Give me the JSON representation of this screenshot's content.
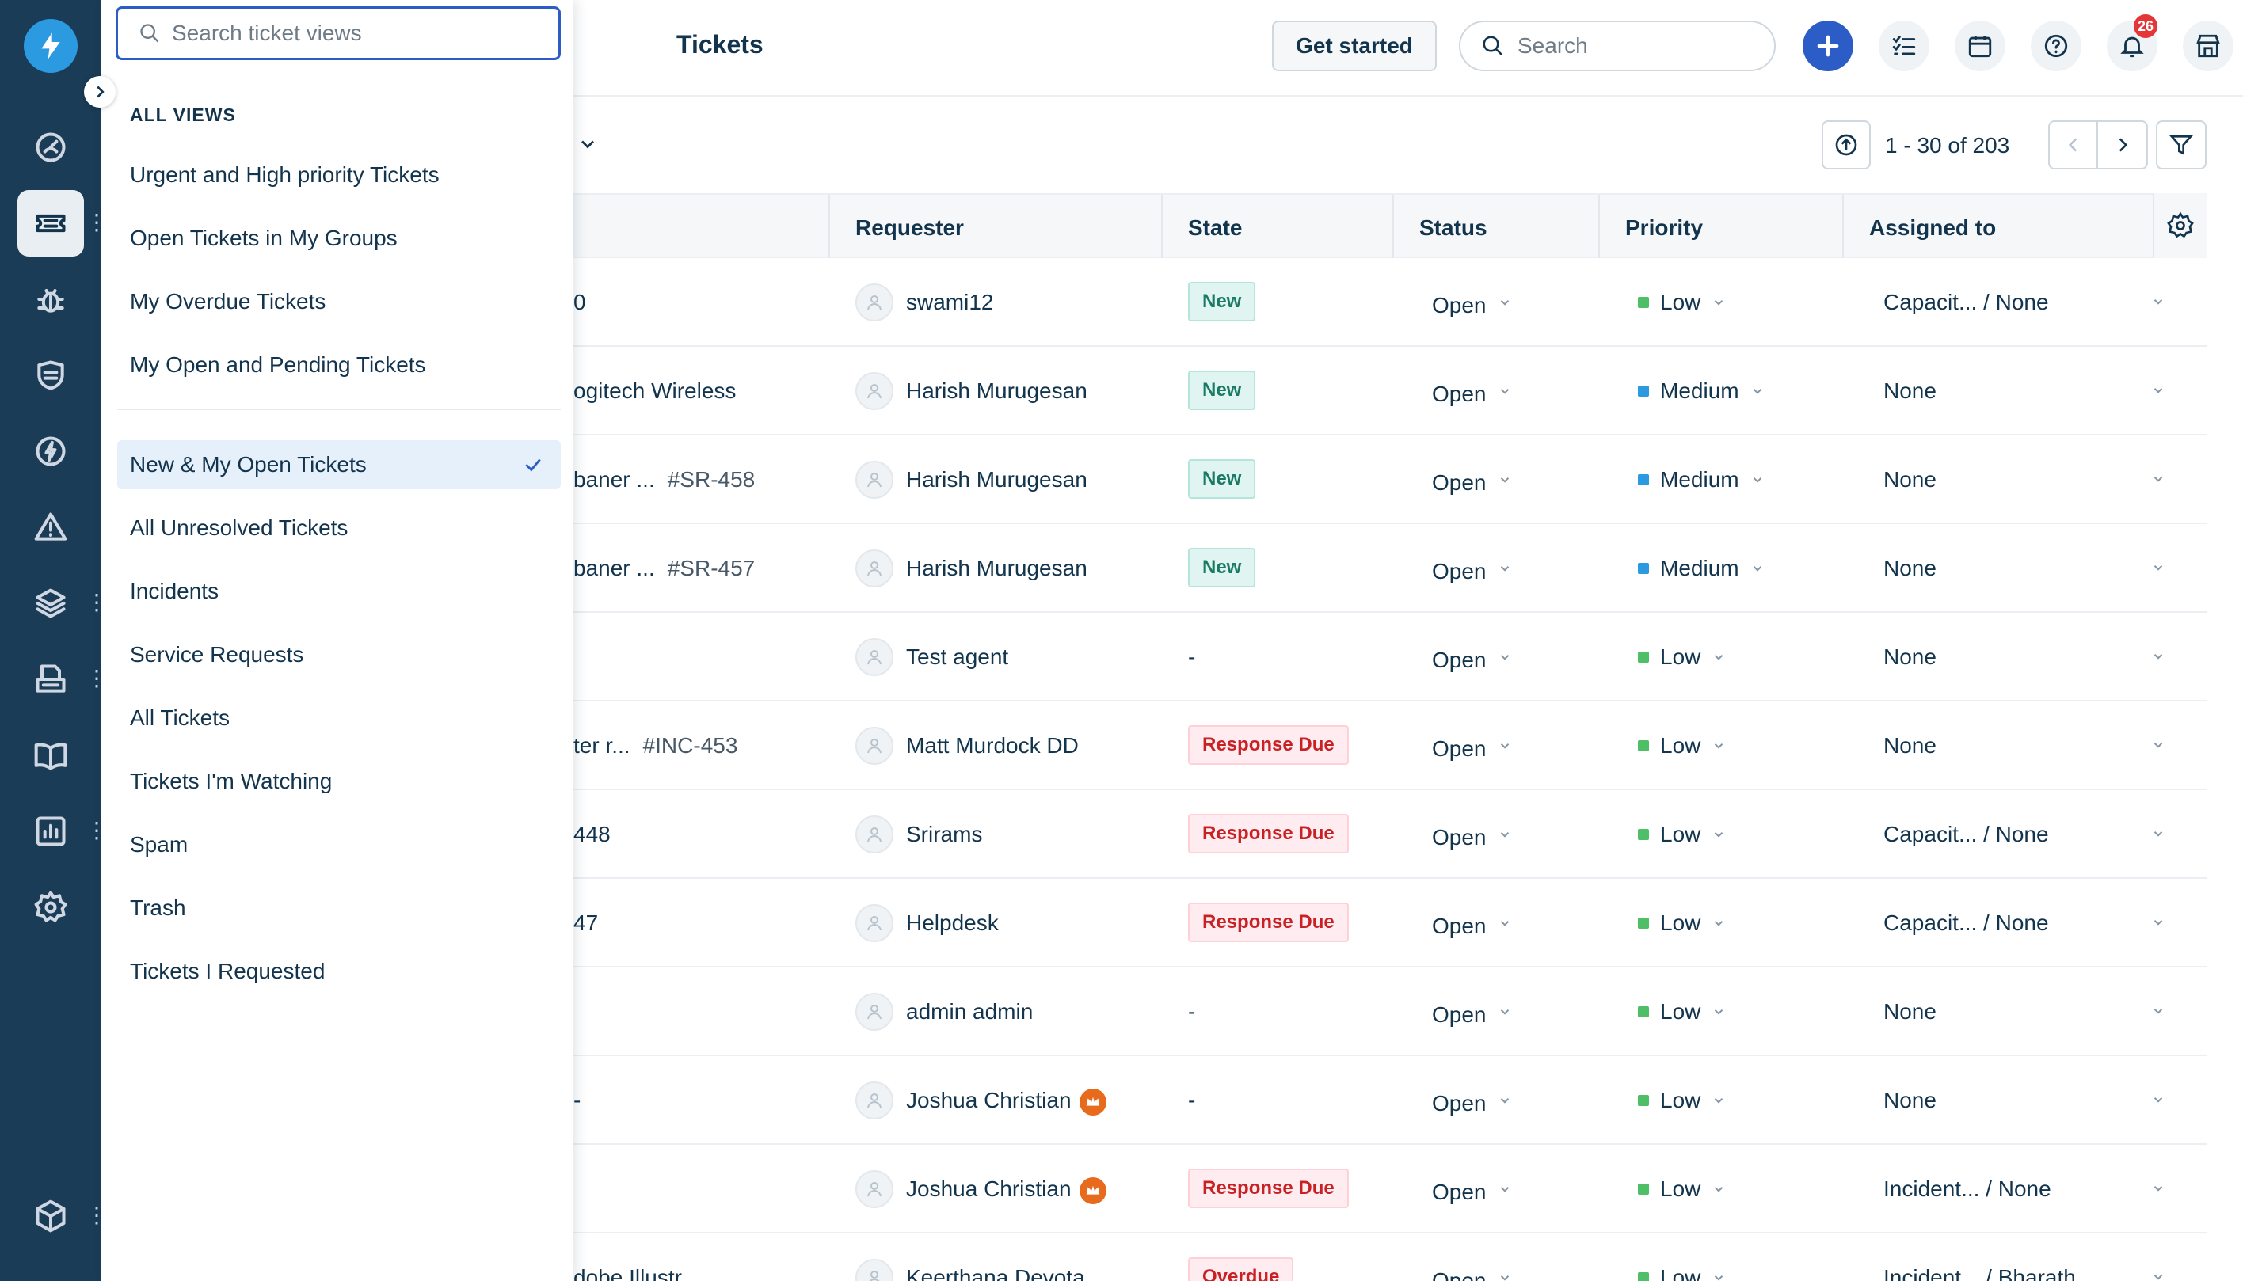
{
  "app": {
    "page_title": "Tickets"
  },
  "rail": {
    "logo_icon": "lightning-icon",
    "items": [
      {
        "name": "dashboard",
        "icon": "gauge-icon"
      },
      {
        "name": "tickets",
        "icon": "ticket-icon",
        "active": true
      },
      {
        "name": "problems",
        "icon": "bug-icon"
      },
      {
        "name": "changes",
        "icon": "shield-icon"
      },
      {
        "name": "releases",
        "icon": "bolt-icon"
      },
      {
        "name": "alerts",
        "icon": "warning-icon"
      },
      {
        "name": "assets",
        "icon": "layers-icon"
      },
      {
        "name": "projects",
        "icon": "printer-icon"
      },
      {
        "name": "solutions",
        "icon": "book-icon"
      },
      {
        "name": "analytics",
        "icon": "chart-icon"
      },
      {
        "name": "admin",
        "icon": "gear-icon"
      },
      {
        "name": "apps",
        "icon": "box-icon"
      }
    ]
  },
  "views_panel": {
    "search_placeholder": "Search ticket views",
    "header": "ALL VIEWS",
    "items": [
      "Urgent and High priority Tickets",
      "Open Tickets in My Groups",
      "My Overdue Tickets",
      "My Open and Pending Tickets",
      "New & My Open Tickets",
      "All Unresolved Tickets",
      "Incidents",
      "Service Requests",
      "All Tickets",
      "Tickets I'm Watching",
      "Spam",
      "Trash",
      "Tickets I Requested"
    ],
    "selected": "New & My Open Tickets"
  },
  "topbar": {
    "get_started": "Get started",
    "search_placeholder": "Search",
    "notification_count": "26"
  },
  "toolbar": {
    "pagination": "1 - 30 of 203"
  },
  "table": {
    "columns": {
      "requester": "Requester",
      "state": "State",
      "status": "Status",
      "priority": "Priority",
      "assigned_to": "Assigned to"
    },
    "rows": [
      {
        "subject": "0",
        "id": "",
        "requester": "swami12",
        "vip": false,
        "state": "New",
        "state_kind": "new",
        "status": "Open",
        "priority": "Low",
        "priority_color": "#4fbf67",
        "assigned": "Capacit... / None"
      },
      {
        "subject": "ogitech Wireless",
        "id": "",
        "requester": "Harish Murugesan",
        "vip": false,
        "state": "New",
        "state_kind": "new",
        "status": "Open",
        "priority": "Medium",
        "priority_color": "#2c9ae0",
        "assigned": "None"
      },
      {
        "subject": "baner ...",
        "id": "#SR-458",
        "requester": "Harish Murugesan",
        "vip": false,
        "state": "New",
        "state_kind": "new",
        "status": "Open",
        "priority": "Medium",
        "priority_color": "#2c9ae0",
        "assigned": "None"
      },
      {
        "subject": "baner ...",
        "id": "#SR-457",
        "requester": "Harish Murugesan",
        "vip": false,
        "state": "New",
        "state_kind": "new",
        "status": "Open",
        "priority": "Medium",
        "priority_color": "#2c9ae0",
        "assigned": "None"
      },
      {
        "subject": "",
        "id": "",
        "requester": "Test agent",
        "vip": false,
        "state": "-",
        "state_kind": "dash",
        "status": "Open",
        "priority": "Low",
        "priority_color": "#4fbf67",
        "assigned": "None"
      },
      {
        "subject": "ter r...",
        "id": "#INC-453",
        "requester": "Matt Murdock DD",
        "vip": false,
        "state": "Response Due",
        "state_kind": "due",
        "status": "Open",
        "priority": "Low",
        "priority_color": "#4fbf67",
        "assigned": "None"
      },
      {
        "subject": "448",
        "id": "",
        "requester": "Srirams",
        "vip": false,
        "state": "Response Due",
        "state_kind": "due",
        "status": "Open",
        "priority": "Low",
        "priority_color": "#4fbf67",
        "assigned": "Capacit... / None"
      },
      {
        "subject": "47",
        "id": "",
        "requester": "Helpdesk",
        "vip": false,
        "state": "Response Due",
        "state_kind": "due",
        "status": "Open",
        "priority": "Low",
        "priority_color": "#4fbf67",
        "assigned": "Capacit... / None"
      },
      {
        "subject": "",
        "id": "",
        "requester": "admin admin",
        "vip": false,
        "state": "-",
        "state_kind": "dash",
        "status": "Open",
        "priority": "Low",
        "priority_color": "#4fbf67",
        "assigned": "None"
      },
      {
        "subject": "-",
        "id": "",
        "requester": "Joshua Christian",
        "vip": true,
        "state": "-",
        "state_kind": "dash",
        "status": "Open",
        "priority": "Low",
        "priority_color": "#4fbf67",
        "assigned": "None"
      },
      {
        "subject": "",
        "id": "",
        "requester": "Joshua Christian",
        "vip": true,
        "state": "Response Due",
        "state_kind": "due",
        "status": "Open",
        "priority": "Low",
        "priority_color": "#4fbf67",
        "assigned": "Incident... / None"
      },
      {
        "subject": "dobe Illustr...",
        "id": "",
        "requester": "Keerthana Devota",
        "vip": false,
        "state": "Overdue",
        "state_kind": "over",
        "status": "Open",
        "priority": "Low",
        "priority_color": "#4fbf67",
        "assigned": "Incident... / Bharath"
      }
    ]
  },
  "colors": {
    "rail_bg": "#1b3c57",
    "accent": "#2c5cc5",
    "logo": "#2c9ae0"
  }
}
